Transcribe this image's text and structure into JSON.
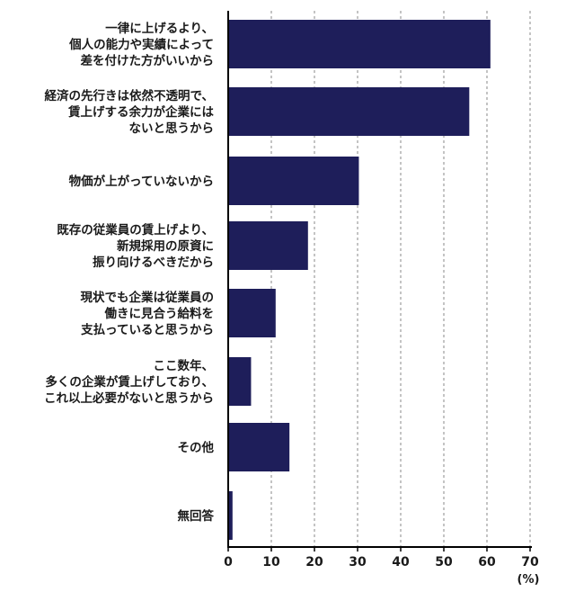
{
  "chart_data": {
    "type": "bar",
    "orientation": "horizontal",
    "categories": [
      [
        "一律に上げるより、",
        "個人の能力や実績によって",
        "差を付けた方がいいから"
      ],
      [
        "経済の先行きは依然不透明で、",
        "賃上げする余力が企業には",
        "ないと思うから"
      ],
      [
        "物価が上がっていないから"
      ],
      [
        "既存の従業員の賃上げより、",
        "新規採用の原資に",
        "振り向けるべきだから"
      ],
      [
        "現状でも企業は従業員の",
        "働きに見合う給料を",
        "支払っていると思うから"
      ],
      [
        "ここ数年、",
        "多くの企業が賃上げしており、",
        "これ以上必要がないと思うから"
      ],
      [
        "その他"
      ],
      [
        "無回答"
      ]
    ],
    "values": [
      60.8,
      55.9,
      30.3,
      18.5,
      11.0,
      5.3,
      14.2,
      1.0
    ],
    "xlim": [
      0,
      70
    ],
    "xticks": [
      "0",
      "10",
      "20",
      "30",
      "40",
      "50",
      "60",
      "70"
    ],
    "xunit": "(%)",
    "grid": "vertical-dashed",
    "colors": {
      "bar": "#1e1e5a",
      "axis": "#000000",
      "grid": "#888888"
    }
  }
}
